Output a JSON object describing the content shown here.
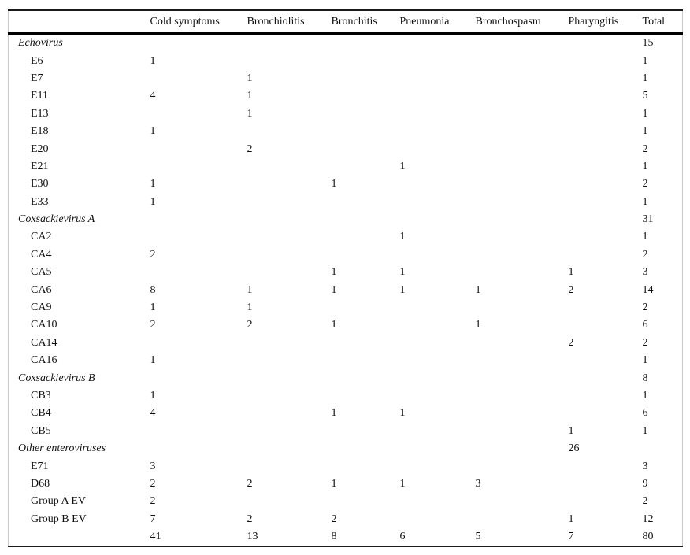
{
  "table": {
    "columns": [
      "",
      "Cold symptoms",
      "Bronchiolitis",
      "Bronchitis",
      "Pneumonia",
      "Bronchospasm",
      "Pharyngitis",
      "Total"
    ],
    "rows": [
      {
        "label": "Echovirus",
        "style": "group",
        "cells": [
          "",
          "",
          "",
          "",
          "",
          "",
          "15"
        ]
      },
      {
        "label": "E6",
        "style": "item",
        "cells": [
          "1",
          "",
          "",
          "",
          "",
          "",
          "1"
        ]
      },
      {
        "label": "E7",
        "style": "item",
        "cells": [
          "",
          "1",
          "",
          "",
          "",
          "",
          "1"
        ]
      },
      {
        "label": "E11",
        "style": "item",
        "cells": [
          "4",
          "1",
          "",
          "",
          "",
          "",
          "5"
        ]
      },
      {
        "label": "E13",
        "style": "item",
        "cells": [
          "",
          "1",
          "",
          "",
          "",
          "",
          "1"
        ]
      },
      {
        "label": "E18",
        "style": "item",
        "cells": [
          "1",
          "",
          "",
          "",
          "",
          "",
          "1"
        ]
      },
      {
        "label": "E20",
        "style": "item",
        "cells": [
          "",
          "2",
          "",
          "",
          "",
          "",
          "2"
        ]
      },
      {
        "label": "E21",
        "style": "item",
        "cells": [
          "",
          "",
          "",
          "1",
          "",
          "",
          "1"
        ]
      },
      {
        "label": "E30",
        "style": "item",
        "cells": [
          "1",
          "",
          "1",
          "",
          "",
          "",
          "2"
        ]
      },
      {
        "label": "E33",
        "style": "item",
        "cells": [
          "1",
          "",
          "",
          "",
          "",
          "",
          "1"
        ]
      },
      {
        "label": "Coxsackievirus A",
        "style": "group",
        "cells": [
          "",
          "",
          "",
          "",
          "",
          "",
          "31"
        ]
      },
      {
        "label": "CA2",
        "style": "item",
        "cells": [
          "",
          "",
          "",
          "1",
          "",
          "",
          "1"
        ]
      },
      {
        "label": "CA4",
        "style": "item",
        "cells": [
          "2",
          "",
          "",
          "",
          "",
          "",
          "2"
        ]
      },
      {
        "label": "CA5",
        "style": "item",
        "cells": [
          "",
          "",
          "1",
          "1",
          "",
          "1",
          "3"
        ]
      },
      {
        "label": "CA6",
        "style": "item",
        "cells": [
          "8",
          "1",
          "1",
          "1",
          "1",
          "2",
          "14"
        ]
      },
      {
        "label": "CA9",
        "style": "item",
        "cells": [
          "1",
          "1",
          "",
          "",
          "",
          "",
          "2"
        ]
      },
      {
        "label": "CA10",
        "style": "item",
        "cells": [
          "2",
          "2",
          "1",
          "",
          "1",
          "",
          "6"
        ]
      },
      {
        "label": "CA14",
        "style": "item",
        "cells": [
          "",
          "",
          "",
          "",
          "",
          "2",
          "2"
        ]
      },
      {
        "label": "CA16",
        "style": "item",
        "cells": [
          "1",
          "",
          "",
          "",
          "",
          "",
          "1"
        ]
      },
      {
        "label": "Coxsackievirus B",
        "style": "group",
        "cells": [
          "",
          "",
          "",
          "",
          "",
          "",
          "8"
        ]
      },
      {
        "label": "CB3",
        "style": "item",
        "cells": [
          "1",
          "",
          "",
          "",
          "",
          "",
          "1"
        ]
      },
      {
        "label": "CB4",
        "style": "item",
        "cells": [
          "4",
          "",
          "1",
          "1",
          "",
          "",
          "6"
        ]
      },
      {
        "label": "CB5",
        "style": "item",
        "cells": [
          "",
          "",
          "",
          "",
          "",
          "1",
          "1"
        ]
      },
      {
        "label": "Other enteroviruses",
        "style": "group",
        "cells": [
          "",
          "",
          "",
          "",
          "",
          "26",
          ""
        ]
      },
      {
        "label": "E71",
        "style": "item",
        "cells": [
          "3",
          "",
          "",
          "",
          "",
          "",
          "3"
        ]
      },
      {
        "label": "D68",
        "style": "item",
        "cells": [
          "2",
          "2",
          "1",
          "1",
          "3",
          "",
          "9"
        ]
      },
      {
        "label": "Group A EV",
        "style": "item",
        "cells": [
          "2",
          "",
          "",
          "",
          "",
          "",
          "2"
        ]
      },
      {
        "label": "Group B EV",
        "style": "item",
        "cells": [
          "7",
          "2",
          "2",
          "",
          "",
          "1",
          "12"
        ]
      },
      {
        "label": "",
        "style": "totals",
        "cells": [
          "41",
          "13",
          "8",
          "6",
          "5",
          "7",
          "80"
        ]
      }
    ]
  }
}
